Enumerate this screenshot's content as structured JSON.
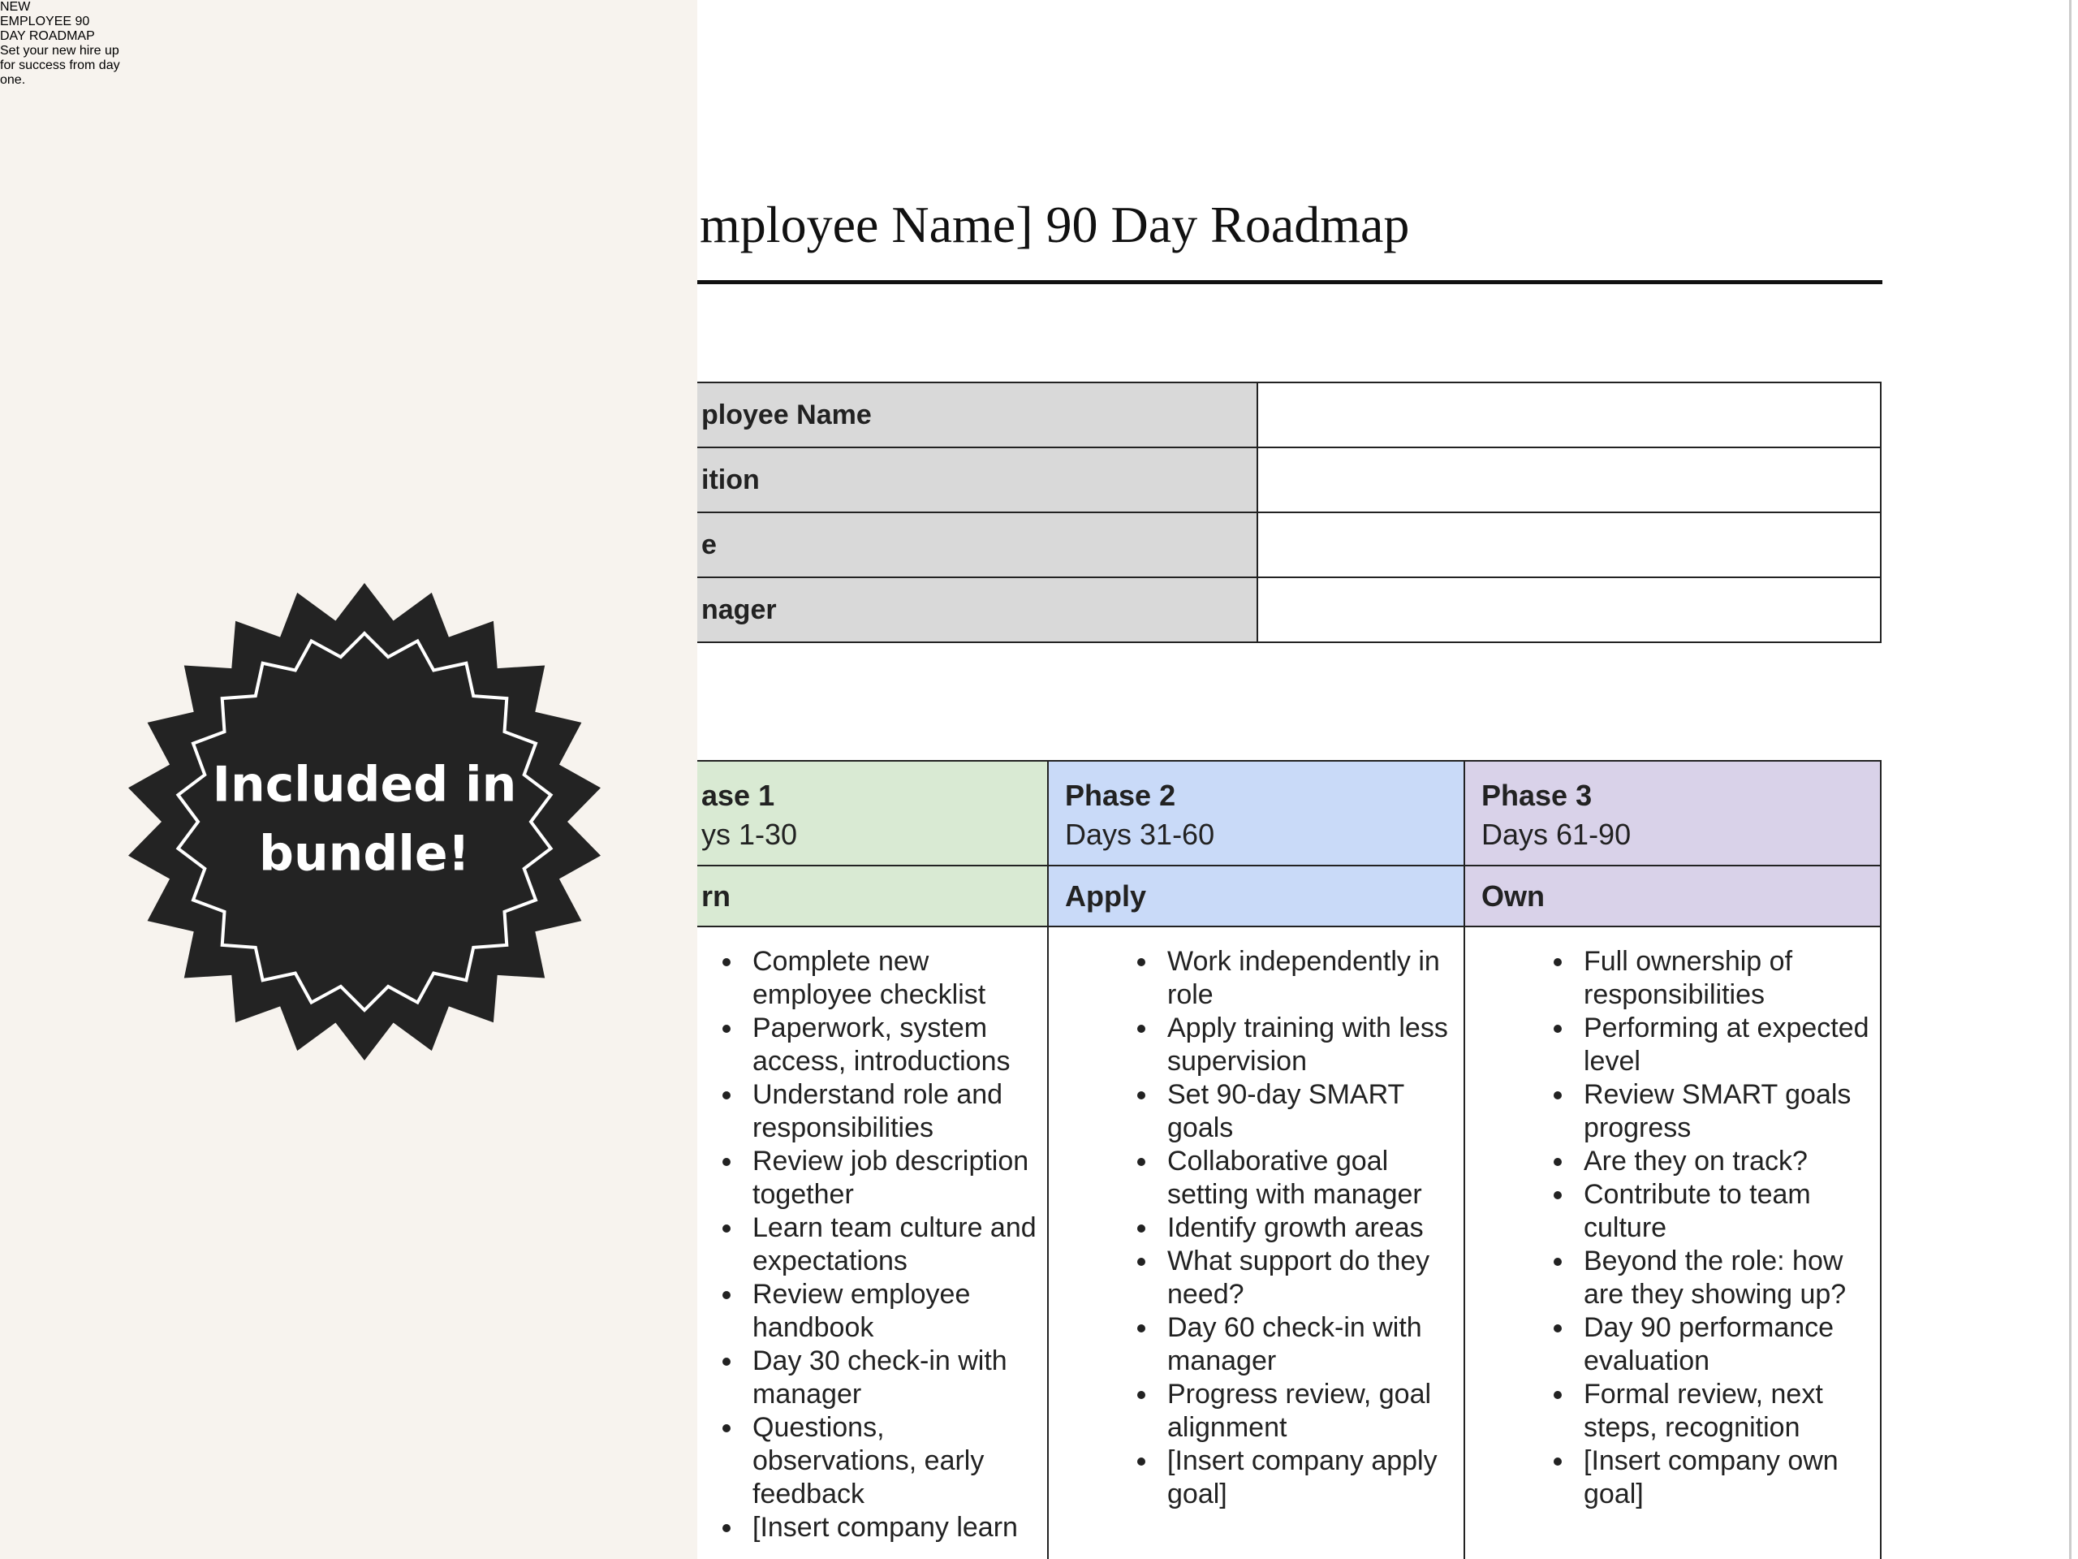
{
  "promo": {
    "title_lines": [
      "NEW",
      "EMPLOYEE 90",
      "DAY ROADMAP"
    ],
    "badge_lines": [
      "Included in",
      "bundle!"
    ],
    "tagline_lines": [
      "Set your new hire up",
      "for success from day",
      "one."
    ]
  },
  "document": {
    "title": "mployee Name] 90 Day Roadmap",
    "info_rows": [
      "ployee Name",
      "ition",
      "e",
      "nager"
    ],
    "phases": [
      {
        "name": "ase 1",
        "days": "ys 1-30",
        "focus": "rn",
        "items": [
          "Complete new employee checklist",
          "Paperwork, system access, introductions",
          "Understand role and responsibilities",
          "Review job description together",
          "Learn team culture and expectations",
          "Review employee handbook",
          "Day 30 check-in with manager",
          "Questions, observations, early feedback",
          "[Insert company learn"
        ]
      },
      {
        "name": "Phase 2",
        "days": "Days 31-60",
        "focus": "Apply",
        "items": [
          "Work independently in role",
          "Apply training with less supervision",
          "Set 90-day SMART goals",
          "Collaborative goal setting with manager",
          "Identify growth areas",
          "What support do they need?",
          "Day 60 check-in with manager",
          "Progress review, goal alignment",
          "[Insert company apply goal]"
        ]
      },
      {
        "name": "Phase 3",
        "days": "Days 61-90",
        "focus": "Own",
        "items": [
          "Full ownership of responsibilities",
          "Performing at expected level",
          "Review SMART goals progress",
          "Are they on track?",
          "Contribute to team culture",
          "Beyond the role: how are they showing up?",
          "Day 90 performance evaluation",
          "Formal review, next steps, recognition",
          "[Insert company own goal]"
        ]
      }
    ]
  }
}
